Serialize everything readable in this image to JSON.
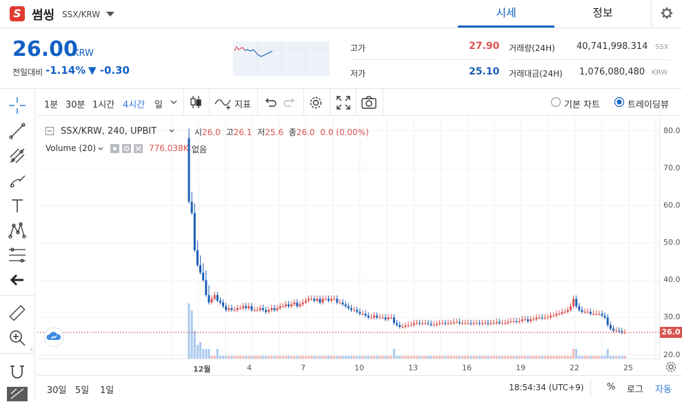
{
  "header": {
    "logo_letter": "S",
    "coin_name": "썸씽",
    "pair": "SSX/KRW",
    "tabs": [
      {
        "label": "시세"
      },
      {
        "label": "정보"
      }
    ]
  },
  "price_panel": {
    "price": "26.00",
    "unit": "KRW",
    "change_label": "전일대비",
    "change_pct": "-1.14%",
    "change_val": "▼ -0.30"
  },
  "stats": {
    "high_label": "고가",
    "high_value": "27.90",
    "low_label": "저가",
    "low_value": "25.10",
    "vol_label": "거래량(24H)",
    "vol_value": "40,741,998.314",
    "vol_unit": "SSX",
    "amt_label": "거래대금(24H)",
    "amt_value": "1,076,080,480",
    "amt_unit": "KRW"
  },
  "toolbar": {
    "intervals": [
      "1분",
      "30분",
      "1시간",
      "4시간",
      "일"
    ],
    "active_interval": "4시간",
    "indicator_label": "지표",
    "basic_chart_label": "기본 차트",
    "tradingview_label": "트레이딩뷰"
  },
  "legend": {
    "symbol": "SSX/KRW, 240, UPBIT",
    "open_label": "시",
    "open": "26.0",
    "high_label": "고",
    "high": "26.1",
    "low_label": "저",
    "low": "25.6",
    "close_label": "종",
    "close": "26.0",
    "change": "0.0 (0.00%)",
    "volume_label": "Volume (20)",
    "volume_value": "776.038K",
    "volume_extra": "없음"
  },
  "bottom": {
    "ranges": [
      "30일",
      "5일",
      "1일"
    ],
    "time": "18:54:34 (UTC+9)",
    "pct_label": "%",
    "log_label": "로그",
    "auto_label": "자동"
  },
  "colors": {
    "up": "#d9534f",
    "down": "#1b5fb5",
    "accent": "#1261c4",
    "vol_up": "#f2b8b2",
    "vol_down": "#a9c9ef"
  },
  "chart_data": {
    "type": "candlestick",
    "ylim": [
      19,
      84
    ],
    "y_ticks": [
      "80.0",
      "70.0",
      "60.0",
      "50.0",
      "40.0",
      "30.0",
      "20.0"
    ],
    "x_ticks": [
      "12월",
      "4",
      "7",
      "10",
      "13",
      "16",
      "19",
      "22",
      "25"
    ],
    "last_price_label": "26.0",
    "last_price": 26.0,
    "closes": [
      61.0,
      58.0,
      48.0,
      44.0,
      42.0,
      40.0,
      36.0,
      34.0,
      35.0,
      36.0,
      34.5,
      34.0,
      33.0,
      32.0,
      32.5,
      32.0,
      32.0,
      32.5,
      32.5,
      33.0,
      32.5,
      33.0,
      32.0,
      32.0,
      32.0,
      32.5,
      32.0,
      31.5,
      32.0,
      32.5,
      32.0,
      32.5,
      33.0,
      33.0,
      33.5,
      33.0,
      33.5,
      34.0,
      33.0,
      33.5,
      34.0,
      34.5,
      35.0,
      35.0,
      34.5,
      35.0,
      34.0,
      35.0,
      35.0,
      34.5,
      35.0,
      35.0,
      34.0,
      34.0,
      33.5,
      33.0,
      32.5,
      32.0,
      32.0,
      31.5,
      31.0,
      31.0,
      30.5,
      30.0,
      30.0,
      30.5,
      30.0,
      30.0,
      30.0,
      29.5,
      30.0,
      30.0,
      28.5,
      28.0,
      27.5,
      27.5,
      27.8,
      28.0,
      28.0,
      28.5,
      28.5,
      28.3,
      28.5,
      28.5,
      28.3,
      28.0,
      28.0,
      28.3,
      28.5,
      28.5,
      28.3,
      28.5,
      28.5,
      28.8,
      28.8,
      28.5,
      28.5,
      28.5,
      28.5,
      28.3,
      28.5,
      28.5,
      28.3,
      28.5,
      28.5,
      28.3,
      28.5,
      28.5,
      28.8,
      28.5,
      28.5,
      28.5,
      28.8,
      29.0,
      29.0,
      28.8,
      29.0,
      29.5,
      29.5,
      29.0,
      29.5,
      29.5,
      30.0,
      30.0,
      29.8,
      30.0,
      30.0,
      30.5,
      30.5,
      31.0,
      31.0,
      31.5,
      31.5,
      32.0,
      33.0,
      35.0,
      33.0,
      32.0,
      31.5,
      31.5,
      31.5,
      31.0,
      31.0,
      31.0,
      31.0,
      30.5,
      30.0,
      28.0,
      27.0,
      26.5,
      26.5,
      26.3,
      26.0,
      26.0
    ]
  }
}
